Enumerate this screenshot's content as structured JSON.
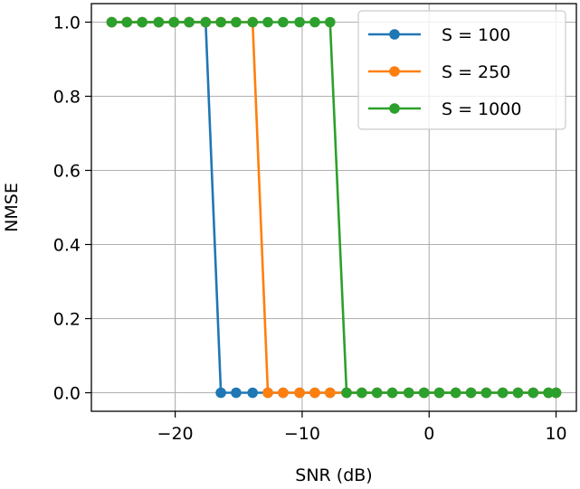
{
  "chart_data": {
    "type": "line",
    "title": "",
    "xlabel": "SNR (dB)",
    "ylabel": "NMSE",
    "xlim": [
      -26.6,
      11.6
    ],
    "ylim": [
      -0.05,
      1.05
    ],
    "xticks": [
      -20,
      -10,
      0,
      10
    ],
    "xtick_labels": [
      "−20",
      "−10",
      "0",
      "10"
    ],
    "yticks": [
      0.0,
      0.2,
      0.4,
      0.6,
      0.8,
      1.0
    ],
    "ytick_labels": [
      "0.0",
      "0.2",
      "0.4",
      "0.6",
      "0.8",
      "1.0"
    ],
    "grid": true,
    "legend_position": "top-right",
    "series": [
      {
        "name": "S = 100",
        "color": "#1f77b4",
        "x": [
          -25.0,
          -23.8,
          -22.6,
          -21.3,
          -20.1,
          -18.9,
          -17.6,
          -16.4,
          -15.2,
          -13.9,
          -12.7,
          -11.5,
          -10.2,
          -9.0,
          -7.8,
          -6.5,
          -5.3,
          -4.1,
          -2.9,
          -1.6,
          -0.4,
          0.8,
          2.1,
          3.3,
          4.5,
          5.8,
          7.0,
          8.2,
          9.4,
          10.0
        ],
        "y": [
          1.0,
          1.0,
          1.0,
          1.0,
          1.0,
          1.0,
          1.0,
          0.0,
          0.0,
          0.0,
          0.0,
          0.0,
          0.0,
          0.0,
          0.0,
          0.0,
          0.0,
          0.0,
          0.0,
          0.0,
          0.0,
          0.0,
          0.0,
          0.0,
          0.0,
          0.0,
          0.0,
          0.0,
          0.0,
          0.0
        ]
      },
      {
        "name": "S = 250",
        "color": "#ff7f0e",
        "x": [
          -25.0,
          -23.8,
          -22.6,
          -21.3,
          -20.1,
          -18.9,
          -17.6,
          -16.4,
          -15.2,
          -13.9,
          -12.7,
          -11.5,
          -10.2,
          -9.0,
          -7.8,
          -6.5,
          -5.3,
          -4.1,
          -2.9,
          -1.6,
          -0.4,
          0.8,
          2.1,
          3.3,
          4.5,
          5.8,
          7.0,
          8.2,
          9.4,
          10.0
        ],
        "y": [
          1.0,
          1.0,
          1.0,
          1.0,
          1.0,
          1.0,
          1.0,
          1.0,
          1.0,
          1.0,
          0.0,
          0.0,
          0.0,
          0.0,
          0.0,
          0.0,
          0.0,
          0.0,
          0.0,
          0.0,
          0.0,
          0.0,
          0.0,
          0.0,
          0.0,
          0.0,
          0.0,
          0.0,
          0.0,
          0.0
        ]
      },
      {
        "name": "S = 1000",
        "color": "#2ca02c",
        "x": [
          -25.0,
          -23.8,
          -22.6,
          -21.3,
          -20.1,
          -18.9,
          -17.6,
          -16.4,
          -15.2,
          -13.9,
          -12.7,
          -11.5,
          -10.2,
          -9.0,
          -7.8,
          -6.5,
          -5.3,
          -4.1,
          -2.9,
          -1.6,
          -0.4,
          0.8,
          2.1,
          3.3,
          4.5,
          5.8,
          7.0,
          8.2,
          9.4,
          10.0
        ],
        "y": [
          1.0,
          1.0,
          1.0,
          1.0,
          1.0,
          1.0,
          1.0,
          1.0,
          1.0,
          1.0,
          1.0,
          1.0,
          1.0,
          1.0,
          1.0,
          0.0,
          0.0,
          0.0,
          0.0,
          0.0,
          0.0,
          0.0,
          0.0,
          0.0,
          0.0,
          0.0,
          0.0,
          0.0,
          0.0,
          0.0
        ]
      }
    ]
  }
}
